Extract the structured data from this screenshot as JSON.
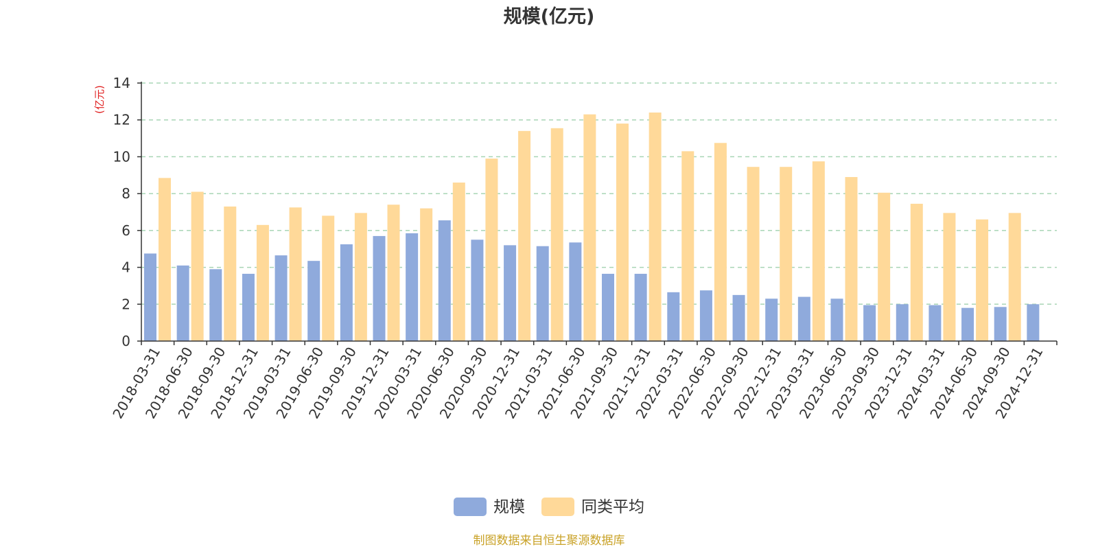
{
  "chart_data": {
    "type": "bar",
    "title": "规模(亿元)",
    "ylabel": "(亿元)",
    "xlabel": "",
    "ylim": [
      0,
      14
    ],
    "yticks": [
      0,
      2,
      4,
      6,
      8,
      10,
      12,
      14
    ],
    "grid": true,
    "legend_position": "bottom-center",
    "categories": [
      "2018-03-31",
      "2018-06-30",
      "2018-09-30",
      "2018-12-31",
      "2019-03-31",
      "2019-06-30",
      "2019-09-30",
      "2019-12-31",
      "2020-03-31",
      "2020-06-30",
      "2020-09-30",
      "2020-12-31",
      "2021-03-31",
      "2021-06-30",
      "2021-09-30",
      "2021-12-31",
      "2022-03-31",
      "2022-06-30",
      "2022-09-30",
      "2022-12-31",
      "2023-03-31",
      "2023-06-30",
      "2023-09-30",
      "2023-12-31",
      "2024-03-31",
      "2024-06-30",
      "2024-09-30",
      "2024-12-31"
    ],
    "series": [
      {
        "name": "规模",
        "color": "#8faadc",
        "values": [
          4.75,
          4.1,
          3.9,
          3.65,
          4.65,
          4.35,
          5.25,
          5.7,
          5.85,
          6.55,
          5.5,
          5.2,
          5.15,
          5.35,
          3.65,
          3.65,
          2.65,
          2.75,
          2.5,
          2.3,
          2.4,
          2.3,
          1.95,
          2.0,
          1.95,
          1.8,
          1.85,
          2.0
        ]
      },
      {
        "name": "同类平均",
        "color": "#ffd999",
        "values": [
          8.85,
          8.1,
          7.3,
          6.3,
          7.25,
          6.8,
          6.95,
          7.4,
          7.2,
          8.6,
          9.9,
          11.4,
          11.55,
          12.3,
          11.8,
          12.4,
          10.3,
          10.75,
          9.45,
          9.45,
          9.75,
          8.9,
          8.05,
          7.45,
          6.95,
          6.6,
          6.95,
          null
        ]
      }
    ]
  },
  "colors": {
    "axis": "#333333",
    "grid": "#a8d5b5",
    "unit_label": "#e02020",
    "source_text": "#c9a227"
  },
  "source": "制图数据来自恒生聚源数据库"
}
